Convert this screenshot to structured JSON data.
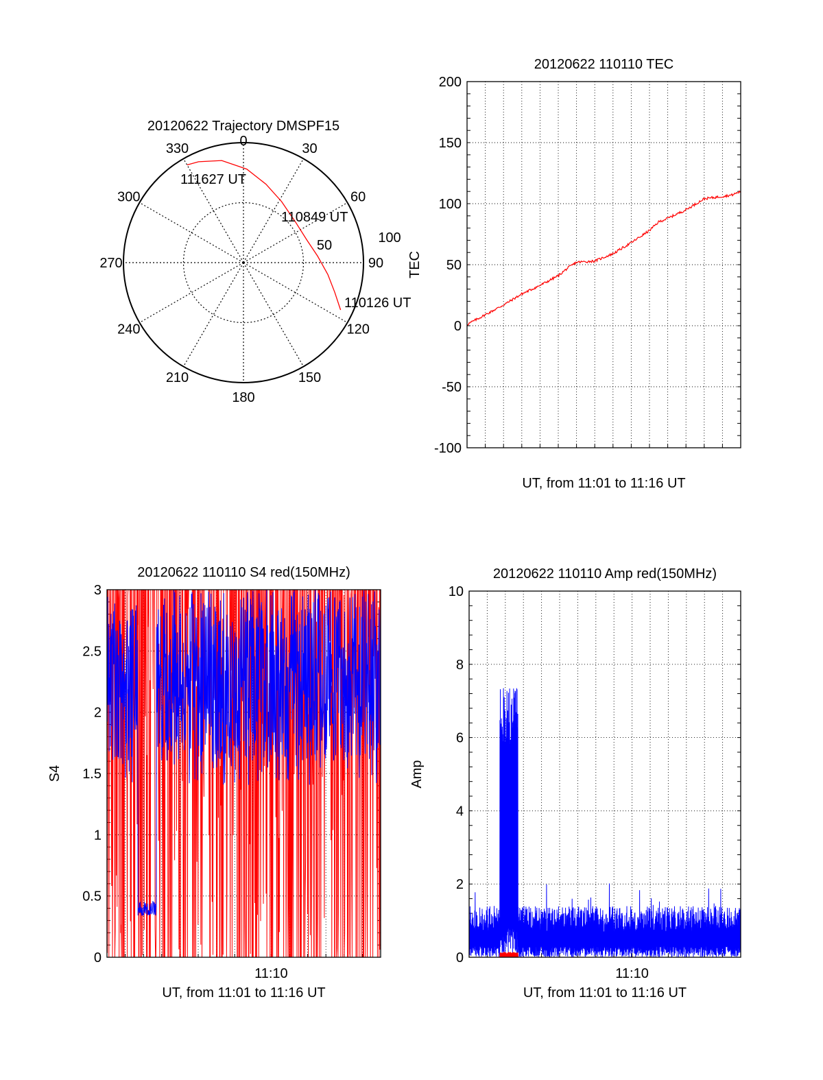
{
  "chart_data": [
    {
      "id": "trajectory",
      "type": "polar",
      "title": "20120622 Trajectory DMSPF15",
      "angle_ticks": [
        0,
        30,
        60,
        90,
        120,
        150,
        180,
        210,
        240,
        270,
        300,
        330
      ],
      "radial_ticks": [
        50,
        100
      ],
      "radial_max": 100,
      "angle_direction": "clockwise",
      "zero_position": "top",
      "series": [
        {
          "color": "#ff0000",
          "points": [
            {
              "az": 116,
              "r": 90
            },
            {
              "az": 108,
              "r": 80
            },
            {
              "az": 98,
              "r": 71
            },
            {
              "az": 85,
              "r": 62
            },
            {
              "az": 70,
              "r": 56
            },
            {
              "az": 52,
              "r": 55
            },
            {
              "az": 32,
              "r": 60
            },
            {
              "az": 16,
              "r": 68
            },
            {
              "az": 2,
              "r": 78
            },
            {
              "az": -12,
              "r": 87
            },
            {
              "az": -24,
              "r": 92
            },
            {
              "az": -30,
              "r": 94
            }
          ]
        }
      ],
      "annotations": [
        {
          "text": "111627 UT",
          "az": -30,
          "r": 94
        },
        {
          "text": "110849 UT",
          "az": 52,
          "r": 55
        },
        {
          "text": "110126 UT",
          "az": 116,
          "r": 90
        }
      ],
      "grid": true
    },
    {
      "id": "tec",
      "type": "line",
      "title": "20120622 110110 TEC",
      "xlabel": "UT, from 11:01 to 11:16 UT",
      "ylabel": "TEC",
      "xlim": [
        "11:01",
        "11:16"
      ],
      "ylim": [
        -100,
        200
      ],
      "yticks": [
        -100,
        -50,
        0,
        50,
        100,
        150,
        200
      ],
      "xticks": [],
      "grid": true,
      "series": [
        {
          "color": "#ff0000",
          "x_minutes": [
            0,
            1,
            2,
            3,
            4,
            5,
            5.5,
            6,
            7,
            8,
            9,
            10,
            10.5,
            11,
            12,
            13,
            14,
            14.5,
            15
          ],
          "y": [
            1,
            9,
            17,
            26,
            33,
            41,
            47,
            52,
            53,
            59,
            68,
            78,
            85,
            88,
            95,
            104,
            106,
            107,
            110
          ]
        }
      ]
    },
    {
      "id": "s4",
      "type": "line",
      "title": "20120622 110110 S4 red(150MHz)",
      "xlabel": "UT, from 11:01 to 11:16 UT",
      "ylabel": "S4",
      "xlim": [
        "11:01",
        "11:16"
      ],
      "ylim": [
        0,
        3
      ],
      "yticks": [
        0,
        0.5,
        1,
        1.5,
        2,
        2.5,
        3
      ],
      "xticks": [
        "11:10"
      ],
      "grid": true,
      "series": [
        {
          "color": "#ff0000",
          "style": "dense-spikes",
          "range": [
            0,
            3
          ]
        },
        {
          "color": "#0000ff",
          "style": "noisy",
          "baseline": [
            1.6,
            3
          ],
          "low_segment": {
            "x_minutes": [
              1.7,
              2.7
            ],
            "value": 0.4
          }
        }
      ]
    },
    {
      "id": "amp",
      "type": "line",
      "title": "20120622 110110 Amp red(150MHz)",
      "xlabel": "UT, from 11:01 to 11:16 UT",
      "ylabel": "Amp",
      "xlim": [
        "11:01",
        "11:16"
      ],
      "ylim": [
        0,
        10
      ],
      "yticks": [
        0,
        2,
        4,
        6,
        8,
        10
      ],
      "xticks": [
        "11:10"
      ],
      "grid": true,
      "series": [
        {
          "color": "#0000ff",
          "style": "noisy",
          "baseline_max": 1.4,
          "burst": {
            "x_minutes": [
              1.7,
              2.7
            ],
            "peak": 7.5
          }
        },
        {
          "color": "#ff0000",
          "style": "near-zero",
          "burst": {
            "x_minutes": [
              1.7,
              2.7
            ],
            "value": 0.1
          }
        }
      ]
    }
  ]
}
